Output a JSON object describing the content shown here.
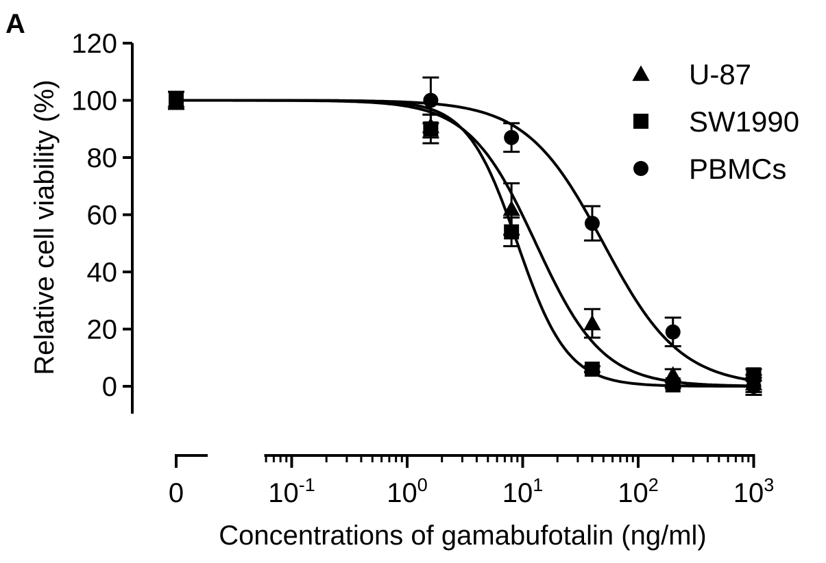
{
  "chart_data": {
    "type": "scatter",
    "panel_label": "A",
    "xlabel": "Concentrations of gamabufotalin (ng/ml)",
    "ylabel": "Relative cell viability (%)",
    "x_scale": "log",
    "x_ticks": [
      {
        "label": "0",
        "sup": ""
      },
      {
        "label": "10",
        "sup": "-1"
      },
      {
        "label": "10",
        "sup": "0"
      },
      {
        "label": "10",
        "sup": "1"
      },
      {
        "label": "10",
        "sup": "2"
      },
      {
        "label": "10",
        "sup": "3"
      }
    ],
    "y_ticks": [
      0,
      20,
      40,
      60,
      80,
      100,
      120
    ],
    "ylim": [
      -10,
      120
    ],
    "legend_position": "top-right",
    "series": [
      {
        "name": "U-87",
        "marker": "triangle",
        "points": [
          {
            "x": 0,
            "y": 100,
            "err": 3
          },
          {
            "x": 1.6,
            "y": 91,
            "err": 4
          },
          {
            "x": 8,
            "y": 62,
            "err": 9
          },
          {
            "x": 40,
            "y": 22,
            "err": 5
          },
          {
            "x": 200,
            "y": 4,
            "err": 2
          },
          {
            "x": 1000,
            "y": 1,
            "err": 3
          }
        ],
        "fit": {
          "ec50": 13,
          "hill": 1.5
        }
      },
      {
        "name": "SW1990",
        "marker": "square",
        "points": [
          {
            "x": 0,
            "y": 100,
            "err": 3
          },
          {
            "x": 1.6,
            "y": 90,
            "err": 5
          },
          {
            "x": 8,
            "y": 54,
            "err": 5
          },
          {
            "x": 40,
            "y": 6,
            "err": 1
          },
          {
            "x": 200,
            "y": 0.5,
            "err": 1
          },
          {
            "x": 1000,
            "y": 4,
            "err": 2
          }
        ],
        "fit": {
          "ec50": 9,
          "hill": 2.0
        }
      },
      {
        "name": "PBMCs",
        "marker": "circle",
        "points": [
          {
            "x": 0,
            "y": 100,
            "err": 3
          },
          {
            "x": 1.6,
            "y": 100,
            "err": 8
          },
          {
            "x": 8,
            "y": 87,
            "err": 5
          },
          {
            "x": 40,
            "y": 57,
            "err": 6
          },
          {
            "x": 200,
            "y": 19,
            "err": 5
          },
          {
            "x": 1000,
            "y": 0,
            "err": 3
          }
        ],
        "fit": {
          "ec50": 50,
          "hill": 1.3
        }
      }
    ]
  }
}
